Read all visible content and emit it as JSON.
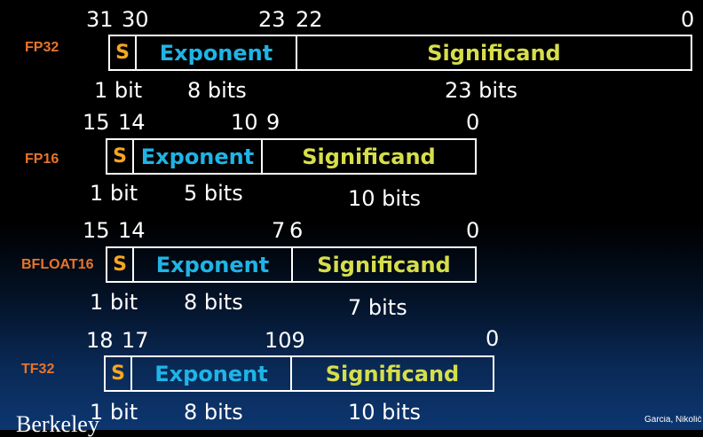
{
  "colors": {
    "sign": "#f5a623",
    "exponent": "#1fb4e6",
    "significand": "#d6de4a",
    "format_label": "#e8742a",
    "text": "#ffffff",
    "box_border": "#ffffff"
  },
  "formats": [
    {
      "name": "FP32",
      "bits": {
        "sign_left": "31",
        "sign_right": "30",
        "exp_end": "23",
        "sig_start": "22",
        "sig_end": "0"
      },
      "fields": {
        "sign": "S",
        "exponent": "Exponent",
        "significand": "Significand"
      },
      "widths": {
        "sign": "1 bit",
        "exponent": "8 bits",
        "significand": "23 bits"
      }
    },
    {
      "name": "FP16",
      "bits": {
        "sign_left": "15",
        "sign_right": "14",
        "exp_end": "10",
        "sig_start": "9",
        "sig_end": "0"
      },
      "fields": {
        "sign": "S",
        "exponent": "Exponent",
        "significand": "Significand"
      },
      "widths": {
        "sign": "1 bit",
        "exponent": "5 bits",
        "significand": "10 bits"
      }
    },
    {
      "name": "BFLOAT16",
      "bits": {
        "sign_left": "15",
        "sign_right": "14",
        "exp_end": "7",
        "sig_start": "6",
        "sig_end": "0"
      },
      "fields": {
        "sign": "S",
        "exponent": "Exponent",
        "significand": "Significand"
      },
      "widths": {
        "sign": "1 bit",
        "exponent": "8 bits",
        "significand": "7 bits"
      }
    },
    {
      "name": "TF32",
      "bits": {
        "sign_left": "18",
        "sign_right": "17",
        "exp_end_sig_start": "109",
        "sig_end": "0"
      },
      "fields": {
        "sign": "S",
        "exponent": "Exponent",
        "significand": "Significand"
      },
      "widths": {
        "sign": "1 bit",
        "exponent": "8 bits",
        "significand": "10 bits"
      }
    }
  ],
  "footer": {
    "logo": "Berkeley",
    "credit": "Garcia, Nikolić"
  }
}
